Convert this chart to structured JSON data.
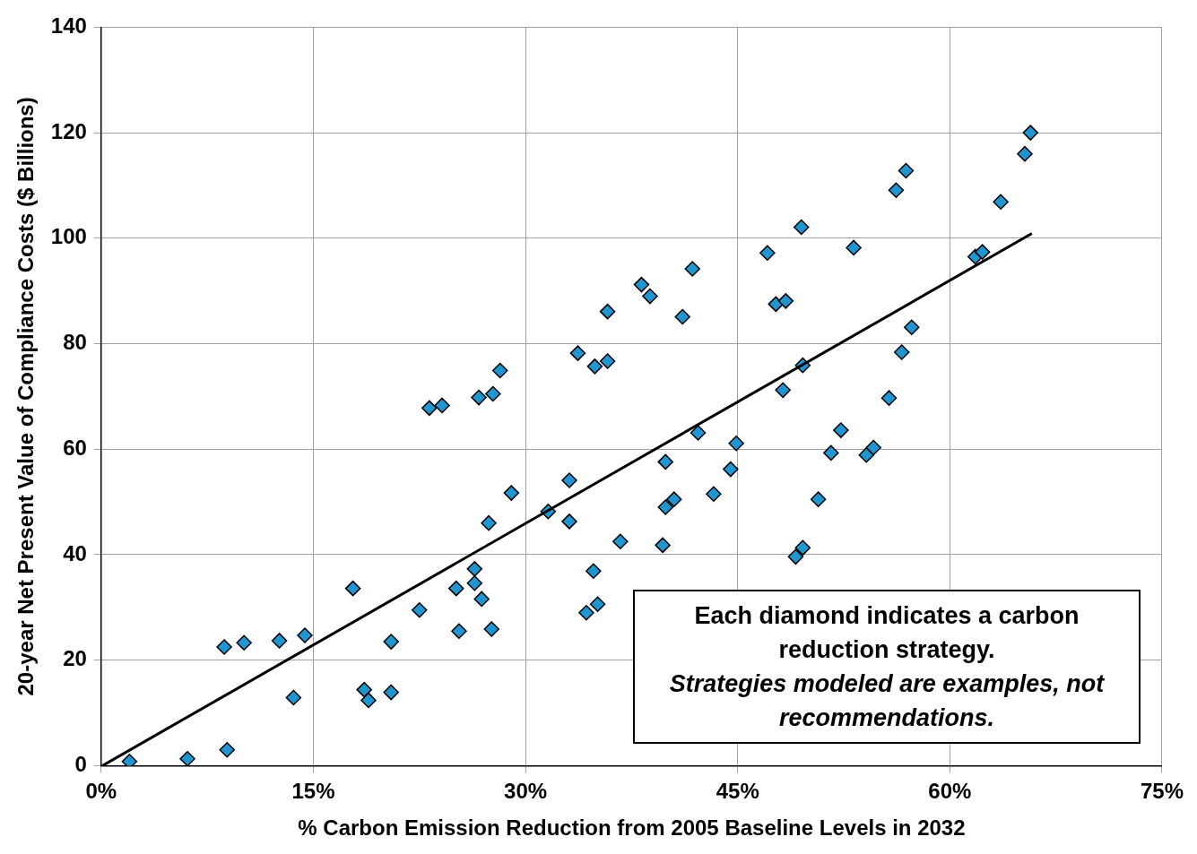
{
  "chart_data": {
    "type": "scatter",
    "xlabel": "% Carbon Emission Reduction from 2005 Baseline Levels in 2032",
    "ylabel": "20-year Net Present Value of Compliance Costs ($ Billions)",
    "xlim": [
      0,
      75
    ],
    "xticks": [
      {
        "value": 0,
        "label": "0%"
      },
      {
        "value": 15,
        "label": "15%"
      },
      {
        "value": 30,
        "label": "30%"
      },
      {
        "value": 45,
        "label": "45%"
      },
      {
        "value": 60,
        "label": "60%"
      },
      {
        "value": 75,
        "label": "75%"
      }
    ],
    "ylim": [
      0,
      140
    ],
    "yticks": [
      0,
      20,
      40,
      60,
      80,
      100,
      120,
      140
    ],
    "grid": true,
    "legend": false,
    "annotations": [
      "Each diamond indicates a carbon reduction strategy.",
      "Strategies modeled are examples, not recommendations."
    ],
    "series": [
      {
        "type": "scatter",
        "color": "#1e96d2",
        "marker": "diamond",
        "x": [
          2.0,
          6.1,
          8.9,
          8.7,
          10.1,
          12.6,
          13.6,
          14.4,
          17.8,
          18.6,
          18.9,
          20.5,
          20.5,
          22.5,
          23.2,
          24.1,
          25.1,
          25.3,
          26.4,
          26.4,
          26.9,
          26.7,
          27.7,
          27.4,
          27.6,
          28.2,
          29.0,
          31.6,
          33.1,
          33.1,
          33.7,
          34.3,
          35.1,
          34.8,
          34.9,
          35.8,
          35.8,
          36.7,
          38.2,
          38.8,
          39.7,
          39.9,
          39.9,
          40.5,
          41.1,
          41.8,
          42.2,
          43.3,
          44.5,
          44.9,
          47.1,
          47.7,
          48.4,
          48.2,
          49.1,
          49.6,
          49.5,
          49.6,
          50.7,
          51.6,
          52.3,
          53.2,
          54.1,
          54.6,
          55.7,
          56.2,
          56.6,
          56.9,
          57.3,
          61.8,
          62.3,
          63.6,
          65.3,
          65.7
        ],
        "values": [
          0.8,
          1.3,
          3.0,
          22.5,
          23.3,
          23.7,
          12.9,
          24.7,
          33.6,
          14.4,
          12.4,
          13.9,
          23.5,
          29.5,
          67.8,
          68.3,
          33.6,
          25.5,
          37.3,
          34.6,
          31.6,
          69.8,
          70.5,
          46.0,
          25.9,
          74.9,
          51.7,
          48.2,
          54.1,
          46.3,
          78.2,
          29.0,
          30.6,
          36.9,
          75.7,
          76.7,
          86.1,
          42.5,
          91.2,
          89.0,
          41.8,
          57.6,
          49.0,
          50.5,
          85.1,
          94.2,
          63.1,
          51.5,
          56.2,
          61.1,
          97.2,
          87.5,
          88.1,
          71.2,
          39.6,
          41.3,
          102.1,
          75.9,
          50.5,
          59.3,
          63.6,
          98.2,
          58.9,
          60.3,
          69.7,
          109.1,
          78.4,
          112.8,
          83.1,
          96.5,
          97.4,
          106.9,
          116.0,
          120.0
        ]
      },
      {
        "type": "line",
        "color": "#000000",
        "marker": "none",
        "line_style": "solid",
        "x": [
          0.1,
          65.8
        ],
        "values": [
          0,
          100.9
        ]
      }
    ]
  }
}
